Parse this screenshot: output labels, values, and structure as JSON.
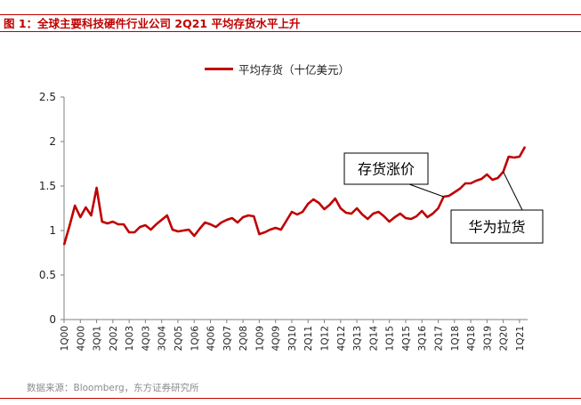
{
  "title": "图 1：全球主要科技硬件行业公司 2Q21 平均存货水平上升",
  "source": "数据来源：Bloomberg，东方证券研究所",
  "colors": {
    "accent": "#c00000",
    "line": "#c00000",
    "axis": "#7f7f7f"
  },
  "chart_data": {
    "type": "line",
    "legend": "平均存货（十亿美元）",
    "ylim": [
      0,
      2.5
    ],
    "yticks": [
      "0",
      "0.5",
      "1",
      "1.5",
      "2",
      "2.5"
    ],
    "xticks": [
      "1Q00",
      "4Q00",
      "3Q01",
      "2Q02",
      "1Q03",
      "4Q03",
      "3Q04",
      "2Q05",
      "1Q06",
      "4Q06",
      "3Q07",
      "2Q08",
      "1Q09",
      "4Q09",
      "3Q10",
      "2Q11",
      "1Q12",
      "4Q12",
      "3Q13",
      "2Q14",
      "1Q15",
      "4Q15",
      "3Q16",
      "2Q17",
      "1Q18",
      "4Q18",
      "3Q19",
      "2Q20",
      "1Q21"
    ],
    "series": [
      {
        "values": [
          0.84,
          1.05,
          1.28,
          1.15,
          1.26,
          1.17,
          1.48,
          1.1,
          1.08,
          1.1,
          1.07,
          1.07,
          0.98,
          0.98,
          1.04,
          1.06,
          1.01,
          1.07,
          1.12,
          1.17,
          1.01,
          0.99,
          1.0,
          1.01,
          0.94,
          1.02,
          1.09,
          1.07,
          1.04,
          1.09,
          1.12,
          1.14,
          1.09,
          1.15,
          1.17,
          1.16,
          0.96,
          0.98,
          1.01,
          1.03,
          1.01,
          1.11,
          1.21,
          1.18,
          1.21,
          1.3,
          1.35,
          1.31,
          1.24,
          1.29,
          1.36,
          1.25,
          1.2,
          1.19,
          1.25,
          1.18,
          1.13,
          1.19,
          1.21,
          1.16,
          1.1,
          1.15,
          1.19,
          1.14,
          1.13,
          1.16,
          1.22,
          1.15,
          1.19,
          1.25,
          1.38,
          1.39,
          1.43,
          1.47,
          1.53,
          1.53,
          1.56,
          1.58,
          1.63,
          1.57,
          1.59,
          1.66,
          1.83,
          1.82,
          1.83,
          1.94
        ]
      }
    ],
    "annotations": [
      {
        "text": "存货涨价",
        "index": 70
      },
      {
        "text": "华为拉货",
        "index": 81
      }
    ]
  }
}
